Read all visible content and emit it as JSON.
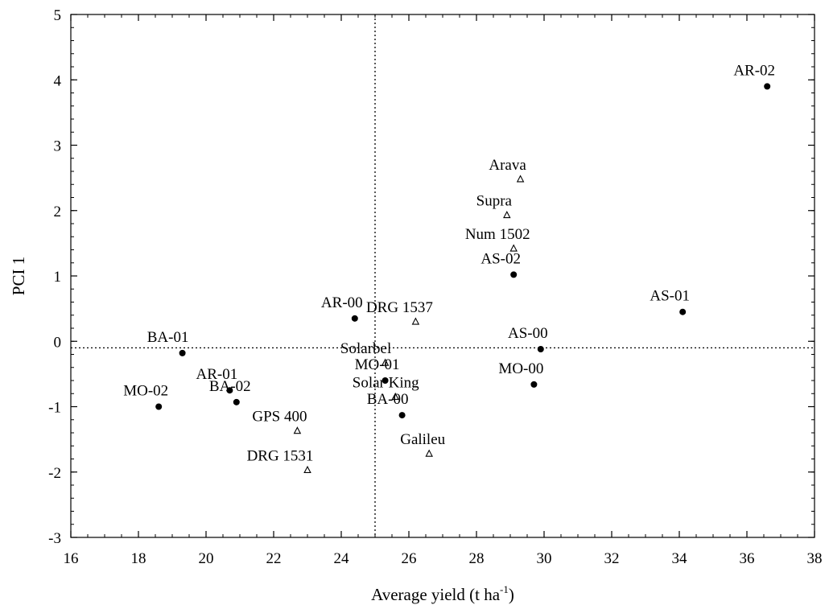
{
  "chart_data": {
    "type": "scatter",
    "title": "",
    "xlabel": "Average yield (t ha",
    "xlabel_sup": "-1",
    "xlabel_end": ")",
    "ylabel": "PCI 1",
    "xlim": [
      16,
      38
    ],
    "ylim": [
      -3,
      5
    ],
    "x_ticks": [
      "16",
      "18",
      "20",
      "22",
      "24",
      "26",
      "28",
      "30",
      "32",
      "34",
      "36",
      "38"
    ],
    "y_ticks": [
      "5",
      "4",
      "3",
      "2",
      "1",
      "0",
      "-1",
      "-2",
      "-3"
    ],
    "reference_lines": {
      "x": 25.0,
      "y": -0.1
    },
    "grid": false,
    "series": [
      {
        "marker": "filled-circle",
        "points": [
          {
            "label": "AR-02",
            "x": 36.6,
            "y": 3.9
          },
          {
            "label": "AS-01",
            "x": 34.1,
            "y": 0.45
          },
          {
            "label": "AS-02",
            "x": 29.1,
            "y": 1.02
          },
          {
            "label": "AS-00",
            "x": 29.9,
            "y": -0.12
          },
          {
            "label": "MO-00",
            "x": 29.7,
            "y": -0.66
          },
          {
            "label": "AR-00",
            "x": 24.4,
            "y": 0.35
          },
          {
            "label": "BA-01",
            "x": 19.3,
            "y": -0.18
          },
          {
            "label": "MO-02",
            "x": 18.6,
            "y": -1.0
          },
          {
            "label": "AR-01",
            "x": 20.7,
            "y": -0.75
          },
          {
            "label": "BA-02",
            "x": 20.9,
            "y": -0.93
          },
          {
            "label": "MO-01",
            "x": 25.3,
            "y": -0.6
          },
          {
            "label": "BA-00",
            "x": 25.8,
            "y": -1.13
          }
        ]
      },
      {
        "marker": "open-triangle",
        "points": [
          {
            "label": "Arava",
            "x": 29.3,
            "y": 2.48
          },
          {
            "label": "Supra",
            "x": 28.9,
            "y": 1.93
          },
          {
            "label": "Num 1502",
            "x": 29.1,
            "y": 1.42
          },
          {
            "label": "DRG 1537",
            "x": 26.2,
            "y": 0.3
          },
          {
            "label": "Solarbel",
            "x": 25.3,
            "y": -0.33
          },
          {
            "label": "Solar King",
            "x": 25.6,
            "y": -0.85
          },
          {
            "label": "GPS 400",
            "x": 22.7,
            "y": -1.37
          },
          {
            "label": "DRG 1531",
            "x": 23.0,
            "y": -1.97
          },
          {
            "label": "Galileu",
            "x": 26.6,
            "y": -1.72
          }
        ]
      }
    ]
  }
}
